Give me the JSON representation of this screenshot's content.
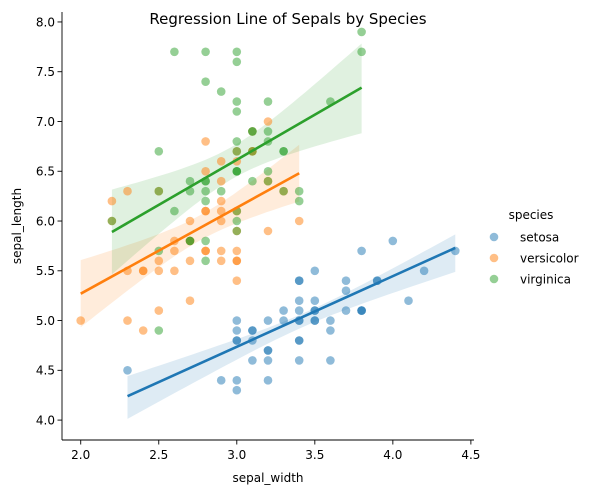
{
  "chart_data": {
    "type": "scatter",
    "title": "Regression Line of Sepals by Species",
    "xlabel": "sepal_width",
    "ylabel": "sepal_length",
    "xlim": [
      1.88,
      4.52
    ],
    "ylim": [
      3.8,
      8.1
    ],
    "xticks": [
      2.0,
      2.5,
      3.0,
      3.5,
      4.0,
      4.5
    ],
    "xtick_labels": [
      "2.0",
      "2.5",
      "3.0",
      "3.5",
      "4.0",
      "4.5"
    ],
    "yticks": [
      4.0,
      4.5,
      5.0,
      5.5,
      6.0,
      6.5,
      7.0,
      7.5,
      8.0
    ],
    "ytick_labels": [
      "4.0",
      "4.5",
      "5.0",
      "5.5",
      "6.0",
      "6.5",
      "7.0",
      "7.5",
      "8.0"
    ],
    "grid": false,
    "legend": {
      "title": "species",
      "placement": "right"
    },
    "series": [
      {
        "name": "setosa",
        "color": "#1f77b4",
        "points": [
          [
            3.5,
            5.1
          ],
          [
            3.0,
            4.9
          ],
          [
            3.2,
            4.7
          ],
          [
            3.1,
            4.6
          ],
          [
            3.6,
            5.0
          ],
          [
            3.9,
            5.4
          ],
          [
            3.4,
            4.6
          ],
          [
            3.4,
            5.0
          ],
          [
            2.9,
            4.4
          ],
          [
            3.1,
            4.9
          ],
          [
            3.7,
            5.4
          ],
          [
            3.4,
            4.8
          ],
          [
            3.0,
            4.8
          ],
          [
            3.0,
            4.3
          ],
          [
            4.0,
            5.8
          ],
          [
            4.4,
            5.7
          ],
          [
            3.9,
            5.4
          ],
          [
            3.5,
            5.1
          ],
          [
            3.8,
            5.7
          ],
          [
            3.8,
            5.1
          ],
          [
            3.4,
            5.4
          ],
          [
            3.7,
            5.1
          ],
          [
            3.6,
            4.6
          ],
          [
            3.3,
            5.1
          ],
          [
            3.4,
            4.8
          ],
          [
            3.0,
            5.0
          ],
          [
            3.4,
            5.0
          ],
          [
            3.5,
            5.2
          ],
          [
            3.4,
            5.2
          ],
          [
            3.2,
            4.7
          ],
          [
            3.1,
            4.8
          ],
          [
            3.4,
            5.4
          ],
          [
            4.1,
            5.2
          ],
          [
            4.2,
            5.5
          ],
          [
            3.1,
            4.9
          ],
          [
            3.2,
            5.0
          ],
          [
            3.5,
            5.5
          ],
          [
            3.6,
            4.9
          ],
          [
            3.0,
            4.4
          ],
          [
            3.4,
            5.1
          ],
          [
            3.5,
            5.0
          ],
          [
            2.3,
            4.5
          ],
          [
            3.2,
            4.4
          ],
          [
            3.5,
            5.0
          ],
          [
            3.8,
            5.1
          ],
          [
            3.0,
            4.8
          ],
          [
            3.8,
            5.1
          ],
          [
            3.2,
            4.6
          ],
          [
            3.7,
            5.3
          ],
          [
            3.3,
            5.0
          ]
        ],
        "regression": {
          "x": [
            2.3,
            4.4
          ],
          "y": [
            4.24,
            5.73
          ]
        }
      },
      {
        "name": "versicolor",
        "color": "#ff7f0e",
        "points": [
          [
            3.2,
            7.0
          ],
          [
            3.2,
            6.4
          ],
          [
            3.1,
            6.9
          ],
          [
            2.3,
            5.5
          ],
          [
            2.8,
            6.5
          ],
          [
            2.8,
            5.7
          ],
          [
            3.3,
            6.3
          ],
          [
            2.4,
            4.9
          ],
          [
            2.9,
            6.6
          ],
          [
            2.7,
            5.2
          ],
          [
            2.0,
            5.0
          ],
          [
            3.0,
            5.9
          ],
          [
            2.2,
            6.0
          ],
          [
            2.9,
            6.1
          ],
          [
            2.9,
            5.6
          ],
          [
            3.1,
            6.7
          ],
          [
            3.0,
            5.6
          ],
          [
            2.7,
            5.8
          ],
          [
            2.2,
            6.2
          ],
          [
            2.5,
            5.6
          ],
          [
            3.2,
            5.9
          ],
          [
            2.8,
            6.1
          ],
          [
            2.5,
            6.3
          ],
          [
            2.8,
            6.1
          ],
          [
            2.9,
            6.4
          ],
          [
            3.0,
            6.6
          ],
          [
            2.8,
            6.8
          ],
          [
            3.0,
            6.7
          ],
          [
            2.9,
            6.0
          ],
          [
            2.6,
            5.7
          ],
          [
            2.4,
            5.5
          ],
          [
            2.4,
            5.5
          ],
          [
            2.7,
            5.8
          ],
          [
            2.7,
            6.0
          ],
          [
            3.0,
            5.4
          ],
          [
            3.4,
            6.0
          ],
          [
            3.1,
            6.7
          ],
          [
            2.3,
            6.3
          ],
          [
            3.0,
            5.6
          ],
          [
            2.5,
            5.5
          ],
          [
            2.6,
            5.5
          ],
          [
            3.0,
            6.1
          ],
          [
            2.6,
            5.8
          ],
          [
            2.3,
            5.0
          ],
          [
            2.7,
            5.6
          ],
          [
            3.0,
            5.7
          ],
          [
            2.9,
            5.7
          ],
          [
            2.9,
            6.2
          ],
          [
            2.5,
            5.1
          ],
          [
            2.8,
            5.7
          ]
        ],
        "regression": {
          "x": [
            2.0,
            3.4
          ],
          "y": [
            5.27,
            6.48
          ]
        }
      },
      {
        "name": "virginica",
        "color": "#2ca02c",
        "points": [
          [
            3.3,
            6.3
          ],
          [
            2.7,
            5.8
          ],
          [
            3.0,
            7.1
          ],
          [
            2.9,
            6.3
          ],
          [
            3.0,
            6.5
          ],
          [
            3.0,
            7.6
          ],
          [
            2.5,
            4.9
          ],
          [
            2.9,
            7.3
          ],
          [
            2.5,
            6.7
          ],
          [
            3.6,
            7.2
          ],
          [
            3.2,
            6.5
          ],
          [
            2.7,
            6.4
          ],
          [
            3.0,
            6.8
          ],
          [
            2.5,
            5.7
          ],
          [
            2.8,
            5.8
          ],
          [
            3.2,
            6.4
          ],
          [
            3.0,
            6.5
          ],
          [
            3.8,
            7.7
          ],
          [
            2.6,
            7.7
          ],
          [
            2.2,
            6.0
          ],
          [
            3.2,
            6.9
          ],
          [
            2.8,
            5.6
          ],
          [
            2.8,
            7.7
          ],
          [
            2.7,
            6.3
          ],
          [
            3.3,
            6.7
          ],
          [
            3.2,
            7.2
          ],
          [
            2.8,
            6.2
          ],
          [
            3.0,
            6.1
          ],
          [
            2.8,
            6.4
          ],
          [
            3.0,
            7.2
          ],
          [
            2.8,
            7.4
          ],
          [
            3.8,
            7.9
          ],
          [
            2.8,
            6.4
          ],
          [
            2.8,
            6.3
          ],
          [
            2.6,
            6.1
          ],
          [
            3.0,
            7.7
          ],
          [
            3.4,
            6.3
          ],
          [
            3.1,
            6.4
          ],
          [
            3.0,
            6.0
          ],
          [
            3.1,
            6.9
          ],
          [
            3.1,
            6.7
          ],
          [
            3.1,
            6.9
          ],
          [
            2.7,
            5.8
          ],
          [
            3.2,
            6.8
          ],
          [
            3.3,
            6.7
          ],
          [
            3.0,
            6.7
          ],
          [
            2.5,
            6.3
          ],
          [
            3.0,
            6.5
          ],
          [
            3.4,
            6.2
          ],
          [
            3.0,
            5.9
          ]
        ],
        "regression": {
          "x": [
            2.2,
            3.8
          ],
          "y": [
            5.89,
            7.34
          ]
        }
      }
    ]
  }
}
